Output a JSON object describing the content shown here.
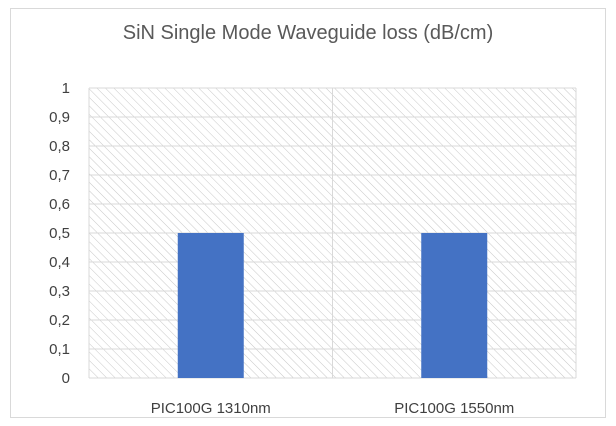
{
  "chart_data": {
    "type": "bar",
    "title": "SiN Single Mode Waveguide  loss (dB/cm)",
    "categories": [
      "PIC100G 1310nm",
      "PIC100G 1550nm"
    ],
    "values": [
      0.5,
      0.5
    ],
    "ylim": [
      0,
      1
    ],
    "yticks": [
      "0",
      "0,1",
      "0,2",
      "0,3",
      "0,4",
      "0,5",
      "0,6",
      "0,7",
      "0,8",
      "0,9",
      "1"
    ],
    "xlabel": "",
    "ylabel": "",
    "grid": true,
    "plot_background": "diagonal-hatch",
    "colors": {
      "bar": "#4472c4",
      "grid": "#d9d9d9",
      "hatch": "#c8c8c8",
      "text": "#404040",
      "title": "#595959"
    }
  }
}
